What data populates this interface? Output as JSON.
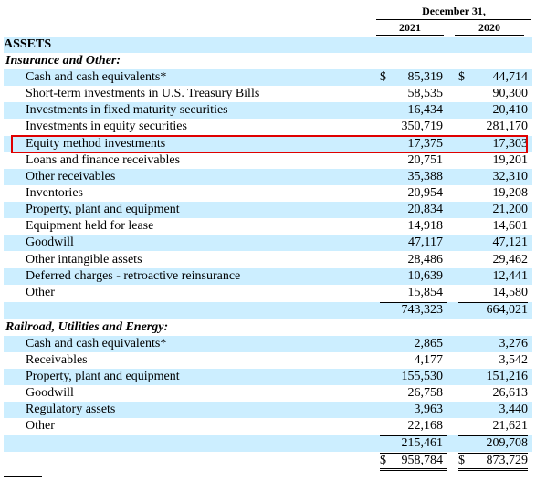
{
  "header": {
    "date_label": "December 31,",
    "year_2021": "2021",
    "year_2020": "2020"
  },
  "section_title": "ASSETS",
  "insurance": {
    "category": "Insurance and Other:",
    "rows": [
      {
        "label": "Cash and cash equivalents*",
        "v2021": "85,319",
        "v2020": "44,714",
        "currency": "$"
      },
      {
        "label": "Short-term investments in U.S. Treasury Bills",
        "v2021": "58,535",
        "v2020": "90,300"
      },
      {
        "label": "Investments in fixed maturity securities",
        "v2021": "16,434",
        "v2020": "20,410"
      },
      {
        "label": "Investments in equity securities",
        "v2021": "350,719",
        "v2020": "281,170"
      },
      {
        "label": "Equity method investments",
        "v2021": "17,375",
        "v2020": "17,303"
      },
      {
        "label": "Loans and finance receivables",
        "v2021": "20,751",
        "v2020": "19,201"
      },
      {
        "label": "Other receivables",
        "v2021": "35,388",
        "v2020": "32,310"
      },
      {
        "label": "Inventories",
        "v2021": "20,954",
        "v2020": "19,208"
      },
      {
        "label": "Property, plant and equipment",
        "v2021": "20,834",
        "v2020": "21,200"
      },
      {
        "label": "Equipment held for lease",
        "v2021": "14,918",
        "v2020": "14,601"
      },
      {
        "label": "Goodwill",
        "v2021": "47,117",
        "v2020": "47,121"
      },
      {
        "label": "Other intangible assets",
        "v2021": "28,486",
        "v2020": "29,462"
      },
      {
        "label": "Deferred charges - retroactive reinsurance",
        "v2021": "10,639",
        "v2020": "12,441"
      },
      {
        "label": "Other",
        "v2021": "15,854",
        "v2020": "14,580"
      }
    ],
    "subtotal_2021": "743,323",
    "subtotal_2020": "664,021"
  },
  "railroad": {
    "category": "Railroad, Utilities and Energy:",
    "rows": [
      {
        "label": "Cash and cash equivalents*",
        "v2021": "2,865",
        "v2020": "3,276"
      },
      {
        "label": "Receivables",
        "v2021": "4,177",
        "v2020": "3,542"
      },
      {
        "label": "Property, plant and equipment",
        "v2021": "155,530",
        "v2020": "151,216"
      },
      {
        "label": "Goodwill",
        "v2021": "26,758",
        "v2020": "26,613"
      },
      {
        "label": "Regulatory assets",
        "v2021": "3,963",
        "v2020": "3,440"
      },
      {
        "label": "Other",
        "v2021": "22,168",
        "v2020": "21,621"
      }
    ],
    "subtotal_2021": "215,461",
    "subtotal_2020": "209,708"
  },
  "total": {
    "currency": "$",
    "v2021": "958,784",
    "v2020": "873,729"
  }
}
